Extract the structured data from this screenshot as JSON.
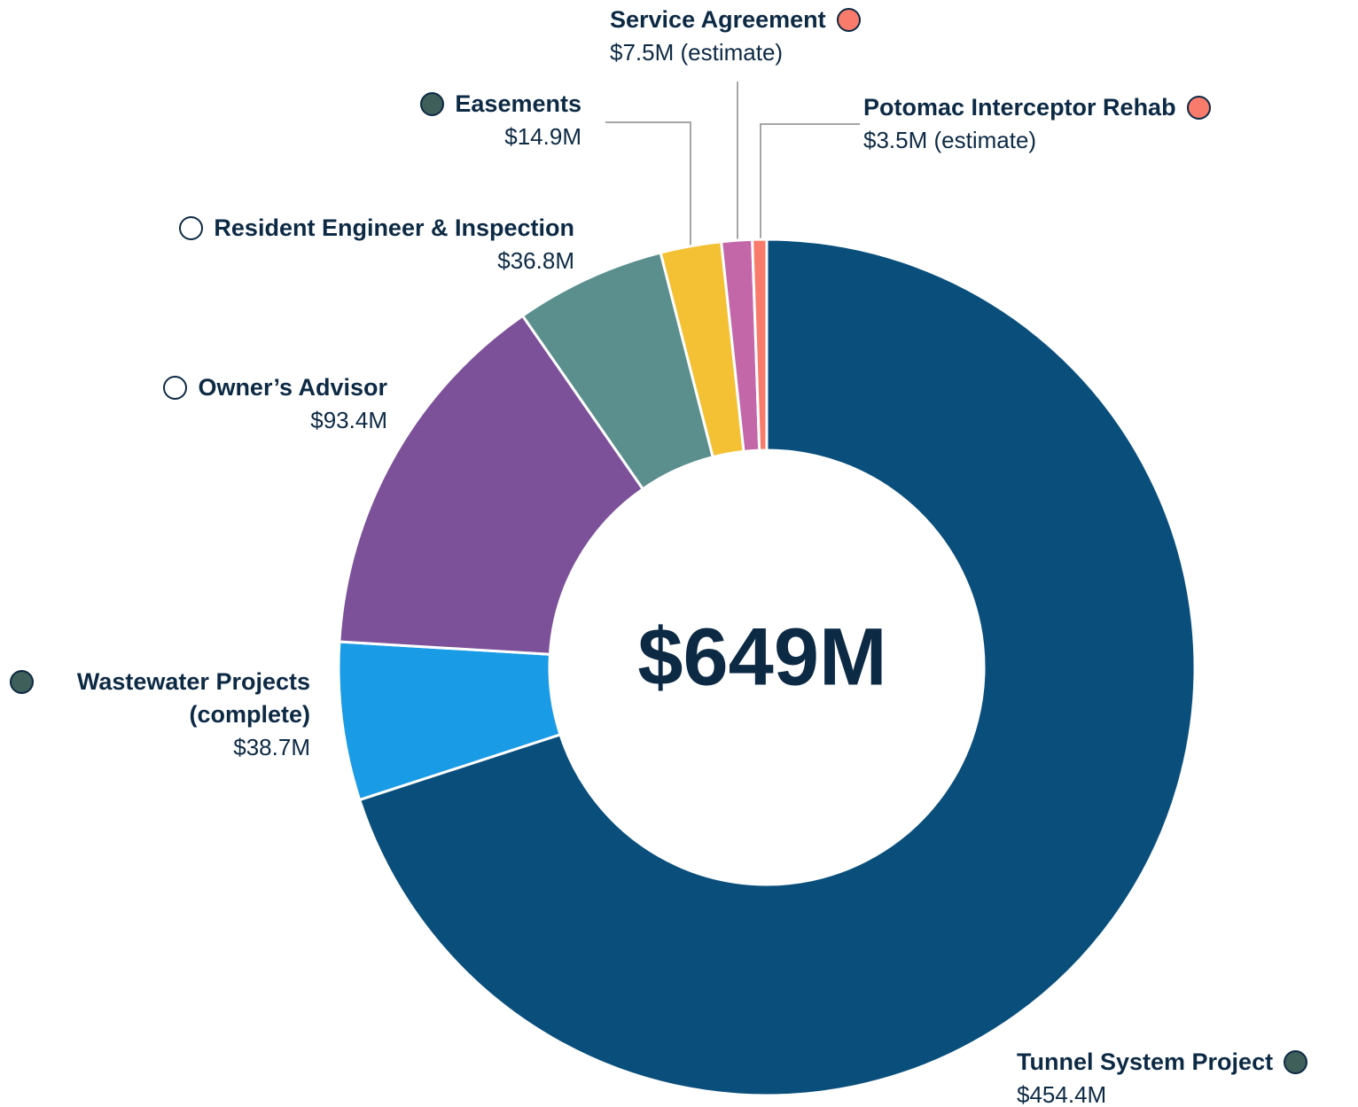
{
  "chart_data": {
    "type": "donut",
    "categories": [
      "Tunnel System Project",
      "Wastewater Projects (complete)",
      "Owner’s Advisor",
      "Resident Engineer & Inspection",
      "Easements",
      "Service Agreement",
      "Potomac Interceptor Rehab"
    ],
    "values": [
      454.4,
      38.7,
      93.4,
      36.8,
      14.9,
      7.5,
      3.5
    ],
    "value_labels": [
      "$454.4M",
      "$38.7M",
      "$93.4M",
      "$36.8M",
      "$14.9M",
      "$7.5M (estimate)",
      "$3.5M (estimate)"
    ],
    "colors": [
      "#0a4f7c",
      "#1a9be6",
      "#7d5199",
      "#5b8f8e",
      "#f3c133",
      "#c467a8",
      "#f87b6b"
    ],
    "marker_colors": [
      "#3f5f5a",
      "#3f5f5a",
      "#ffffff",
      "#ffffff",
      "#3f5f5a",
      "#f87b6b",
      "#f87b6b"
    ],
    "center_label": "$649M"
  }
}
